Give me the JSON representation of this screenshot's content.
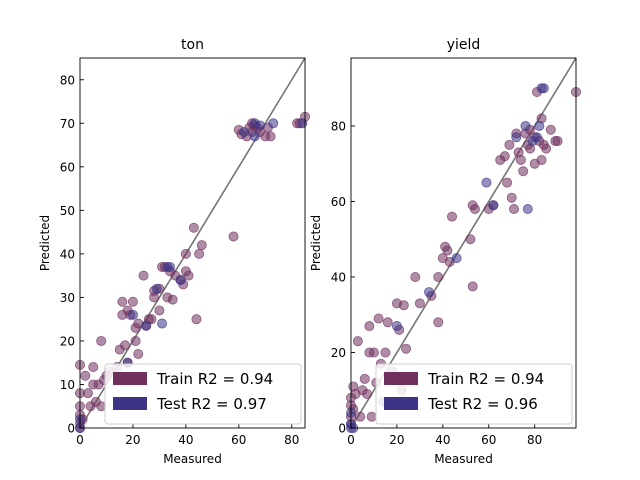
{
  "chart_data": [
    {
      "type": "scatter",
      "title": "ton",
      "xlabel": "Measured",
      "ylabel": "Predicted",
      "xlim": [
        0,
        85
      ],
      "ylim": [
        0,
        85
      ],
      "xticks": [
        0,
        20,
        40,
        60,
        80
      ],
      "yticks": [
        0,
        10,
        20,
        30,
        40,
        50,
        60,
        70,
        80
      ],
      "identity_line": true,
      "legend_position": "lower right",
      "series": [
        {
          "name": "Train R2 = 0.94",
          "color": "#70305e",
          "points": [
            [
              0,
              0
            ],
            [
              0,
              1
            ],
            [
              0,
              3
            ],
            [
              0,
              5
            ],
            [
              0,
              8
            ],
            [
              0,
              14.5
            ],
            [
              1,
              2
            ],
            [
              2,
              12
            ],
            [
              3,
              8
            ],
            [
              4,
              5
            ],
            [
              5,
              14
            ],
            [
              5,
              10
            ],
            [
              6,
              6
            ],
            [
              7,
              10
            ],
            [
              8,
              20
            ],
            [
              8,
              5
            ],
            [
              9,
              11
            ],
            [
              10,
              12
            ],
            [
              11,
              13
            ],
            [
              14,
              14
            ],
            [
              15,
              18
            ],
            [
              16,
              26
            ],
            [
              16,
              29
            ],
            [
              17,
              19
            ],
            [
              18,
              15
            ],
            [
              18,
              27
            ],
            [
              19,
              26
            ],
            [
              20,
              29
            ],
            [
              21,
              20
            ],
            [
              21,
              23
            ],
            [
              22,
              17
            ],
            [
              22,
              24
            ],
            [
              24,
              35
            ],
            [
              25,
              23.5
            ],
            [
              26,
              25
            ],
            [
              27,
              25
            ],
            [
              28,
              30
            ],
            [
              28,
              31.5
            ],
            [
              30,
              27
            ],
            [
              30,
              32
            ],
            [
              31,
              37
            ],
            [
              32,
              37
            ],
            [
              33,
              30
            ],
            [
              34,
              36
            ],
            [
              35,
              29.5
            ],
            [
              36,
              35
            ],
            [
              38,
              34
            ],
            [
              39,
              33
            ],
            [
              40,
              36
            ],
            [
              40,
              40
            ],
            [
              41,
              35
            ],
            [
              43,
              46
            ],
            [
              44,
              25
            ],
            [
              45,
              40
            ],
            [
              46,
              42
            ],
            [
              58,
              44
            ],
            [
              60,
              68.5
            ],
            [
              61,
              67.5
            ],
            [
              63,
              67
            ],
            [
              64,
              69
            ],
            [
              65,
              70
            ],
            [
              65,
              68
            ],
            [
              66,
              69.5
            ],
            [
              67,
              69
            ],
            [
              68,
              68
            ],
            [
              70,
              67
            ],
            [
              71,
              69
            ],
            [
              72,
              67
            ],
            [
              82,
              70
            ],
            [
              83,
              70
            ],
            [
              85,
              71.5
            ]
          ]
        },
        {
          "name": "Test R2 = 0.97",
          "color": "#3c3586",
          "points": [
            [
              0,
              0
            ],
            [
              0,
              2
            ],
            [
              18,
              15
            ],
            [
              20,
              26
            ],
            [
              25,
              23.5
            ],
            [
              29,
              32
            ],
            [
              31,
              24
            ],
            [
              33,
              37
            ],
            [
              34,
              37
            ],
            [
              38,
              34
            ],
            [
              62,
              68
            ],
            [
              66,
              67
            ],
            [
              66,
              70
            ],
            [
              68,
              69.5
            ],
            [
              73,
              70
            ],
            [
              84,
              70
            ]
          ]
        }
      ]
    },
    {
      "type": "scatter",
      "title": "yield",
      "xlabel": "Measured",
      "ylabel": "Predicted",
      "xlim": [
        0,
        98
      ],
      "ylim": [
        0,
        98
      ],
      "xticks": [
        0,
        20,
        40,
        60,
        80
      ],
      "yticks": [
        0,
        20,
        40,
        60,
        80
      ],
      "identity_line": true,
      "legend_position": "lower right",
      "series": [
        {
          "name": "Train R2 = 0.94",
          "color": "#70305e",
          "points": [
            [
              0,
              1
            ],
            [
              0,
              3
            ],
            [
              0,
              6
            ],
            [
              0,
              8
            ],
            [
              1,
              5
            ],
            [
              1,
              11
            ],
            [
              2,
              9
            ],
            [
              3,
              23
            ],
            [
              4,
              3
            ],
            [
              5,
              10
            ],
            [
              6,
              13
            ],
            [
              7,
              9
            ],
            [
              8,
              27
            ],
            [
              8,
              20
            ],
            [
              9,
              3
            ],
            [
              10,
              20
            ],
            [
              11,
              12
            ],
            [
              12,
              29
            ],
            [
              13,
              17
            ],
            [
              15,
              20
            ],
            [
              16,
              28
            ],
            [
              18,
              15
            ],
            [
              20,
              33
            ],
            [
              21,
              26
            ],
            [
              22,
              10
            ],
            [
              23,
              32.5
            ],
            [
              24,
              21
            ],
            [
              28,
              40
            ],
            [
              30,
              33
            ],
            [
              35,
              35
            ],
            [
              38,
              28
            ],
            [
              38,
              40
            ],
            [
              40,
              45
            ],
            [
              41,
              48
            ],
            [
              42,
              47
            ],
            [
              43,
              44
            ],
            [
              44,
              56
            ],
            [
              52,
              50
            ],
            [
              53,
              37.5
            ],
            [
              53,
              59
            ],
            [
              54,
              58
            ],
            [
              60,
              58
            ],
            [
              62,
              59
            ],
            [
              65,
              71
            ],
            [
              67,
              72
            ],
            [
              68,
              65
            ],
            [
              69,
              75
            ],
            [
              70,
              61
            ],
            [
              71,
              58
            ],
            [
              72,
              78
            ],
            [
              73,
              73
            ],
            [
              74,
              71
            ],
            [
              75,
              68
            ],
            [
              76,
              78
            ],
            [
              77,
              75
            ],
            [
              78,
              79
            ],
            [
              78,
              74
            ],
            [
              80,
              77
            ],
            [
              80,
              70
            ],
            [
              81,
              89
            ],
            [
              82,
              76
            ],
            [
              83,
              82
            ],
            [
              83,
              71
            ],
            [
              84,
              75
            ],
            [
              85,
              74
            ],
            [
              87,
              79
            ],
            [
              89,
              76
            ],
            [
              90,
              76
            ],
            [
              98,
              89
            ]
          ]
        },
        {
          "name": "Test R2 = 0.96",
          "color": "#3c3586",
          "points": [
            [
              0,
              0
            ],
            [
              0,
              1
            ],
            [
              0,
              4
            ],
            [
              1,
              0
            ],
            [
              14,
              7
            ],
            [
              20,
              27
            ],
            [
              34,
              36
            ],
            [
              46,
              45
            ],
            [
              59,
              65
            ],
            [
              62,
              59
            ],
            [
              72,
              77
            ],
            [
              76,
              80
            ],
            [
              77,
              58
            ],
            [
              79,
              76
            ],
            [
              81,
              77
            ],
            [
              82,
              80
            ],
            [
              83,
              90
            ],
            [
              84,
              90
            ]
          ]
        }
      ]
    }
  ]
}
